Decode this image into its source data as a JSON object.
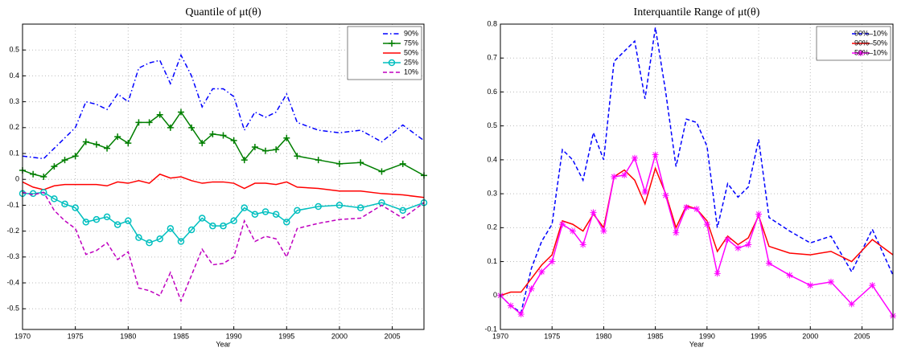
{
  "chart_data": [
    {
      "type": "line",
      "title": "Quantile of μt(θ)",
      "x_label": "Year",
      "x": [
        1970,
        1971,
        1972,
        1973,
        1974,
        1975,
        1976,
        1977,
        1978,
        1979,
        1980,
        1981,
        1982,
        1983,
        1984,
        1985,
        1986,
        1987,
        1988,
        1989,
        1990,
        1991,
        1992,
        1993,
        1994,
        1995,
        1996,
        1998,
        2000,
        2002,
        2004,
        2006,
        2008
      ],
      "xlim": [
        1970,
        2008
      ],
      "xticks": [
        1970,
        1975,
        1980,
        1985,
        1990,
        1995,
        2000,
        2005
      ],
      "ylim": [
        -0.58,
        0.6
      ],
      "yticks": [
        -0.5,
        -0.4,
        -0.3,
        -0.2,
        -0.1,
        0,
        0.1,
        0.2,
        0.3,
        0.4,
        0.5
      ],
      "grid": true,
      "legend": "upper right",
      "series": [
        {
          "name": "90%",
          "color": "#0000ff",
          "dash": "dashdot",
          "marker": "none",
          "values": [
            0.09,
            0.085,
            0.08,
            0.12,
            0.16,
            0.2,
            0.3,
            0.29,
            0.27,
            0.33,
            0.3,
            0.43,
            0.45,
            0.46,
            0.37,
            0.48,
            0.4,
            0.28,
            0.35,
            0.35,
            0.32,
            0.19,
            0.26,
            0.24,
            0.26,
            0.33,
            0.22,
            0.19,
            0.18,
            0.19,
            0.145,
            0.21,
            0.15
          ]
        },
        {
          "name": "75%",
          "color": "#007f00",
          "dash": "solid",
          "marker": "plus",
          "values": [
            0.035,
            0.02,
            0.01,
            0.05,
            0.075,
            0.09,
            0.145,
            0.135,
            0.12,
            0.165,
            0.14,
            0.22,
            0.22,
            0.25,
            0.2,
            0.26,
            0.2,
            0.14,
            0.175,
            0.17,
            0.15,
            0.075,
            0.125,
            0.11,
            0.115,
            0.16,
            0.09,
            0.075,
            0.06,
            0.065,
            0.03,
            0.06,
            0.015
          ]
        },
        {
          "name": "50%",
          "color": "#ff0000",
          "dash": "solid",
          "marker": "none",
          "values": [
            -0.01,
            -0.03,
            -0.04,
            -0.025,
            -0.02,
            -0.02,
            -0.02,
            -0.02,
            -0.025,
            -0.01,
            -0.015,
            -0.005,
            -0.015,
            0.02,
            0.005,
            0.01,
            -0.005,
            -0.015,
            -0.01,
            -0.01,
            -0.015,
            -0.035,
            -0.015,
            -0.015,
            -0.02,
            -0.01,
            -0.03,
            -0.035,
            -0.045,
            -0.045,
            -0.055,
            -0.06,
            -0.07
          ]
        },
        {
          "name": "25%",
          "color": "#00bfbf",
          "dash": "solid",
          "marker": "circle",
          "values": [
            -0.055,
            -0.055,
            -0.05,
            -0.075,
            -0.095,
            -0.11,
            -0.165,
            -0.155,
            -0.145,
            -0.175,
            -0.16,
            -0.225,
            -0.245,
            -0.23,
            -0.19,
            -0.24,
            -0.195,
            -0.15,
            -0.18,
            -0.18,
            -0.16,
            -0.11,
            -0.135,
            -0.125,
            -0.135,
            -0.165,
            -0.12,
            -0.105,
            -0.1,
            -0.11,
            -0.09,
            -0.12,
            -0.09
          ]
        },
        {
          "name": "10%",
          "color": "#bf00bf",
          "dash": "dashed",
          "marker": "none",
          "values": [
            -0.05,
            -0.06,
            -0.05,
            -0.12,
            -0.16,
            -0.19,
            -0.29,
            -0.275,
            -0.245,
            -0.31,
            -0.28,
            -0.42,
            -0.43,
            -0.45,
            -0.36,
            -0.47,
            -0.37,
            -0.27,
            -0.33,
            -0.325,
            -0.3,
            -0.16,
            -0.24,
            -0.22,
            -0.23,
            -0.3,
            -0.19,
            -0.17,
            -0.155,
            -0.15,
            -0.1,
            -0.15,
            -0.09
          ]
        }
      ]
    },
    {
      "type": "line",
      "title": "Interquantile Range of μt(θ)",
      "x_label": "Year",
      "x": [
        1970,
        1971,
        1972,
        1973,
        1974,
        1975,
        1976,
        1977,
        1978,
        1979,
        1980,
        1981,
        1982,
        1983,
        1984,
        1985,
        1986,
        1987,
        1988,
        1989,
        1990,
        1991,
        1992,
        1993,
        1994,
        1995,
        1996,
        1998,
        2000,
        2002,
        2004,
        2006,
        2008
      ],
      "xlim": [
        1970,
        2008
      ],
      "xticks": [
        1970,
        1975,
        1980,
        1985,
        1990,
        1995,
        2000,
        2005
      ],
      "ylim": [
        -0.1,
        0.8
      ],
      "yticks": [
        -0.1,
        0,
        0.1,
        0.2,
        0.3,
        0.4,
        0.5,
        0.6,
        0.7,
        0.8
      ],
      "grid": true,
      "legend": "upper right",
      "series": [
        {
          "name": "90%–10%",
          "color": "#0000ff",
          "dash": "dashed",
          "marker": "none",
          "values": [
            0,
            -0.03,
            -0.05,
            0.08,
            0.16,
            0.21,
            0.43,
            0.4,
            0.34,
            0.48,
            0.4,
            0.69,
            0.72,
            0.75,
            0.58,
            0.79,
            0.6,
            0.38,
            0.52,
            0.51,
            0.44,
            0.2,
            0.33,
            0.29,
            0.32,
            0.46,
            0.23,
            0.19,
            0.155,
            0.175,
            0.07,
            0.195,
            0.06
          ]
        },
        {
          "name": "90%–50%",
          "color": "#ff0000",
          "dash": "solid",
          "marker": "none",
          "values": [
            0,
            0.01,
            0.01,
            0.05,
            0.09,
            0.12,
            0.22,
            0.21,
            0.19,
            0.24,
            0.2,
            0.35,
            0.37,
            0.34,
            0.27,
            0.375,
            0.3,
            0.2,
            0.265,
            0.255,
            0.22,
            0.13,
            0.175,
            0.15,
            0.17,
            0.235,
            0.145,
            0.125,
            0.12,
            0.13,
            0.1,
            0.165,
            0.12
          ]
        },
        {
          "name": "50%–10%",
          "color": "#ff00ff",
          "dash": "solid",
          "marker": "star",
          "values": [
            0,
            -0.03,
            -0.055,
            0.02,
            0.07,
            0.1,
            0.21,
            0.19,
            0.15,
            0.245,
            0.19,
            0.35,
            0.355,
            0.405,
            0.305,
            0.415,
            0.295,
            0.185,
            0.26,
            0.255,
            0.21,
            0.065,
            0.165,
            0.14,
            0.15,
            0.24,
            0.095,
            0.06,
            0.03,
            0.04,
            -0.025,
            0.03,
            -0.06
          ]
        }
      ]
    }
  ]
}
